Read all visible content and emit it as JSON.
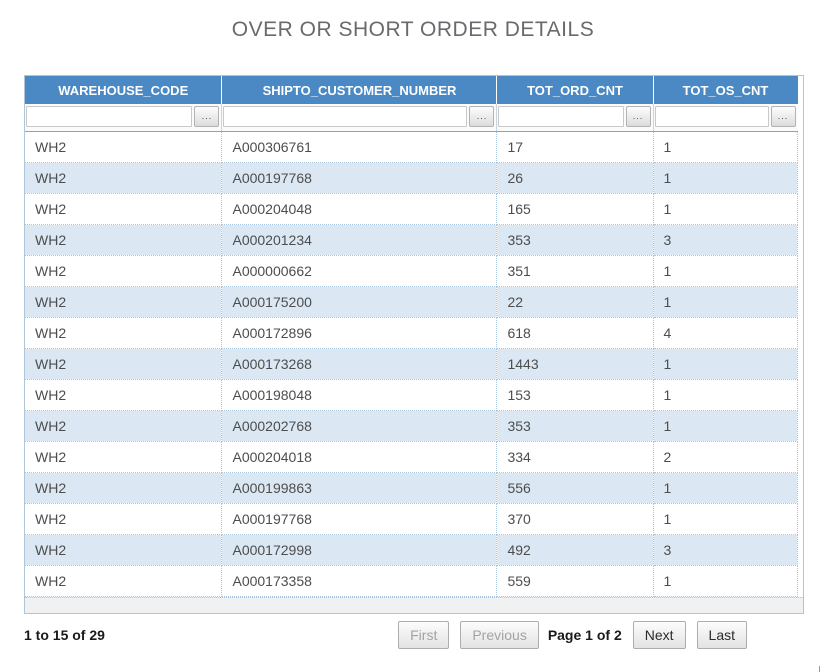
{
  "title": "OVER OR SHORT ORDER DETAILS",
  "colors": {
    "header_bg": "#4a89c4",
    "alt_row_bg": "#dbe8f4"
  },
  "table": {
    "columns": [
      {
        "label": "WAREHOUSE_CODE"
      },
      {
        "label": "SHIPTO_CUSTOMER_NUMBER"
      },
      {
        "label": "TOT_ORD_CNT"
      },
      {
        "label": "TOT_OS_CNT"
      }
    ],
    "filter_button_label": "...",
    "filters": [
      "",
      "",
      "",
      ""
    ],
    "rows": [
      [
        "WH2",
        "A000306761",
        "17",
        "1"
      ],
      [
        "WH2",
        "A000197768",
        "26",
        "1"
      ],
      [
        "WH2",
        "A000204048",
        "165",
        "1"
      ],
      [
        "WH2",
        "A000201234",
        "353",
        "3"
      ],
      [
        "WH2",
        "A000000662",
        "351",
        "1"
      ],
      [
        "WH2",
        "A000175200",
        "22",
        "1"
      ],
      [
        "WH2",
        "A000172896",
        "618",
        "4"
      ],
      [
        "WH2",
        "A000173268",
        "1443",
        "1"
      ],
      [
        "WH2",
        "A000198048",
        "153",
        "1"
      ],
      [
        "WH2",
        "A000202768",
        "353",
        "1"
      ],
      [
        "WH2",
        "A000204018",
        "334",
        "2"
      ],
      [
        "WH2",
        "A000199863",
        "556",
        "1"
      ],
      [
        "WH2",
        "A000197768",
        "370",
        "1"
      ],
      [
        "WH2",
        "A000172998",
        "492",
        "3"
      ],
      [
        "WH2",
        "A000173358",
        "559",
        "1"
      ]
    ]
  },
  "footer": {
    "record_summary": "1 to 15 of 29",
    "first_label": "First",
    "previous_label": "Previous",
    "page_status": "Page 1 of 2",
    "next_label": "Next",
    "last_label": "Last"
  }
}
